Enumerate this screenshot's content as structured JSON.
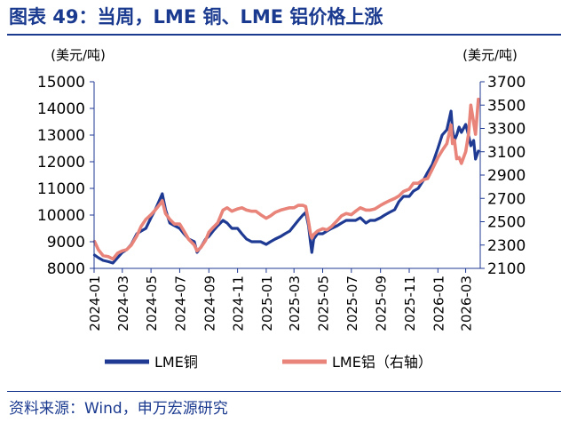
{
  "figure": {
    "title": "图表 49：当周，LME 铜、LME 铝价格上涨",
    "source": "资料来源：Wind，申万宏源研究"
  },
  "chart_data": {
    "type": "line",
    "title": "图表 49：当周，LME 铜、LME 铝价格上涨",
    "y_left": {
      "unit": "(美元/吨)",
      "lim": [
        8000,
        15000
      ],
      "ticks": [
        8000,
        9000,
        10000,
        11000,
        12000,
        13000,
        14000,
        15000
      ]
    },
    "y_right": {
      "unit": "(美元/吨)",
      "lim": [
        2100,
        3700
      ],
      "ticks": [
        2100,
        2300,
        2500,
        2700,
        2900,
        3100,
        3300,
        3500,
        3700
      ]
    },
    "x_range": [
      "2024-01",
      "2026-04"
    ],
    "x_ticks": [
      "2024-01",
      "2024-03",
      "2024-05",
      "2024-07",
      "2024-09",
      "2024-11",
      "2025-01",
      "2025-03",
      "2025-05",
      "2025-07",
      "2025-09",
      "2025-11",
      "2026-01",
      "2026-03"
    ],
    "grid": false,
    "legend_position": "bottom",
    "series": [
      {
        "name": "LME铜",
        "axis": "left",
        "color": "#1f3a93",
        "x": [
          "2024-01-02",
          "2024-01-10",
          "2024-01-20",
          "2024-02-01",
          "2024-02-10",
          "2024-02-20",
          "2024-03-01",
          "2024-03-10",
          "2024-03-20",
          "2024-04-01",
          "2024-04-10",
          "2024-04-20",
          "2024-05-01",
          "2024-05-10",
          "2024-05-20",
          "2024-05-25",
          "2024-06-01",
          "2024-06-10",
          "2024-06-20",
          "2024-07-01",
          "2024-07-10",
          "2024-07-20",
          "2024-08-01",
          "2024-08-07",
          "2024-08-15",
          "2024-08-25",
          "2024-09-01",
          "2024-09-10",
          "2024-09-20",
          "2024-10-01",
          "2024-10-10",
          "2024-10-20",
          "2024-11-01",
          "2024-11-10",
          "2024-11-20",
          "2024-12-01",
          "2024-12-10",
          "2024-12-20",
          "2025-01-01",
          "2025-01-10",
          "2025-01-20",
          "2025-02-01",
          "2025-02-10",
          "2025-02-20",
          "2025-03-01",
          "2025-03-10",
          "2025-03-20",
          "2025-03-26",
          "2025-04-01",
          "2025-04-05",
          "2025-04-08",
          "2025-04-12",
          "2025-04-20",
          "2025-05-01",
          "2025-05-10",
          "2025-05-20",
          "2025-06-01",
          "2025-06-10",
          "2025-06-20",
          "2025-07-01",
          "2025-07-10",
          "2025-07-20",
          "2025-08-01",
          "2025-08-10",
          "2025-08-20",
          "2025-09-01",
          "2025-09-10",
          "2025-09-20",
          "2025-10-01",
          "2025-10-10",
          "2025-10-20",
          "2025-11-01",
          "2025-11-10",
          "2025-11-20",
          "2025-12-01",
          "2025-12-10",
          "2025-12-20",
          "2026-01-01",
          "2026-01-10",
          "2026-01-20",
          "2026-01-29",
          "2026-02-01",
          "2026-02-05",
          "2026-02-10",
          "2026-02-15",
          "2026-02-20",
          "2026-03-01",
          "2026-03-07",
          "2026-03-12",
          "2026-03-18",
          "2026-03-22",
          "2026-03-28"
        ],
        "values": [
          8500,
          8400,
          8300,
          8250,
          8200,
          8400,
          8600,
          8700,
          8900,
          9300,
          9400,
          9500,
          9900,
          10200,
          10600,
          10800,
          10200,
          9700,
          9600,
          9500,
          9300,
          9100,
          9000,
          8600,
          8800,
          9100,
          9200,
          9400,
          9600,
          9800,
          9700,
          9500,
          9500,
          9300,
          9100,
          9000,
          9000,
          9000,
          8900,
          9000,
          9100,
          9200,
          9300,
          9400,
          9600,
          9800,
          10000,
          10100,
          9600,
          9000,
          8600,
          9100,
          9300,
          9300,
          9400,
          9500,
          9600,
          9700,
          9800,
          9800,
          9800,
          9900,
          9700,
          9800,
          9800,
          9900,
          10000,
          10100,
          10200,
          10500,
          10700,
          10700,
          10900,
          11000,
          11300,
          11600,
          11900,
          12500,
          13000,
          13200,
          13900,
          13200,
          12800,
          13000,
          13300,
          13100,
          13400,
          13000,
          12600,
          12800,
          12100,
          12400
        ]
      },
      {
        "name": "LME铝（右轴）",
        "axis": "right",
        "color": "#e8847a",
        "x": [
          "2024-01-02",
          "2024-01-10",
          "2024-01-20",
          "2024-02-01",
          "2024-02-10",
          "2024-02-20",
          "2024-03-01",
          "2024-03-10",
          "2024-03-20",
          "2024-04-01",
          "2024-04-10",
          "2024-04-20",
          "2024-05-01",
          "2024-05-10",
          "2024-05-20",
          "2024-05-25",
          "2024-06-01",
          "2024-06-10",
          "2024-06-20",
          "2024-07-01",
          "2024-07-10",
          "2024-07-20",
          "2024-08-01",
          "2024-08-07",
          "2024-08-15",
          "2024-08-25",
          "2024-09-01",
          "2024-09-10",
          "2024-09-20",
          "2024-10-01",
          "2024-10-10",
          "2024-10-20",
          "2024-11-01",
          "2024-11-10",
          "2024-11-20",
          "2024-12-01",
          "2024-12-10",
          "2024-12-20",
          "2025-01-01",
          "2025-01-10",
          "2025-01-20",
          "2025-02-01",
          "2025-02-10",
          "2025-02-20",
          "2025-03-01",
          "2025-03-10",
          "2025-03-20",
          "2025-03-26",
          "2025-04-01",
          "2025-04-05",
          "2025-04-08",
          "2025-04-12",
          "2025-04-20",
          "2025-05-01",
          "2025-05-10",
          "2025-05-20",
          "2025-06-01",
          "2025-06-10",
          "2025-06-20",
          "2025-07-01",
          "2025-07-10",
          "2025-07-20",
          "2025-08-01",
          "2025-08-10",
          "2025-08-20",
          "2025-09-01",
          "2025-09-10",
          "2025-09-20",
          "2025-10-01",
          "2025-10-10",
          "2025-10-20",
          "2025-11-01",
          "2025-11-10",
          "2025-11-20",
          "2025-12-01",
          "2025-12-10",
          "2025-12-20",
          "2026-01-01",
          "2026-01-10",
          "2026-01-20",
          "2026-01-29",
          "2026-02-01",
          "2026-02-05",
          "2026-02-10",
          "2026-02-15",
          "2026-02-20",
          "2026-03-01",
          "2026-03-07",
          "2026-03-12",
          "2026-03-18",
          "2026-03-22",
          "2026-03-28"
        ],
        "values": [
          2330,
          2260,
          2210,
          2200,
          2180,
          2230,
          2250,
          2260,
          2300,
          2380,
          2460,
          2520,
          2560,
          2600,
          2650,
          2680,
          2570,
          2520,
          2480,
          2480,
          2420,
          2350,
          2300,
          2250,
          2280,
          2340,
          2410,
          2450,
          2490,
          2600,
          2620,
          2590,
          2610,
          2620,
          2600,
          2590,
          2590,
          2560,
          2530,
          2550,
          2580,
          2600,
          2610,
          2620,
          2620,
          2640,
          2640,
          2630,
          2500,
          2400,
          2360,
          2390,
          2420,
          2440,
          2430,
          2460,
          2510,
          2550,
          2570,
          2560,
          2590,
          2620,
          2600,
          2600,
          2610,
          2640,
          2660,
          2680,
          2700,
          2720,
          2760,
          2780,
          2830,
          2830,
          2860,
          2870,
          2950,
          3050,
          3110,
          3170,
          3330,
          3170,
          3200,
          3040,
          3050,
          3000,
          3100,
          3250,
          3500,
          3350,
          3250,
          3550
        ]
      }
    ],
    "legend": [
      "LME铜",
      "LME铝（右轴）"
    ]
  }
}
